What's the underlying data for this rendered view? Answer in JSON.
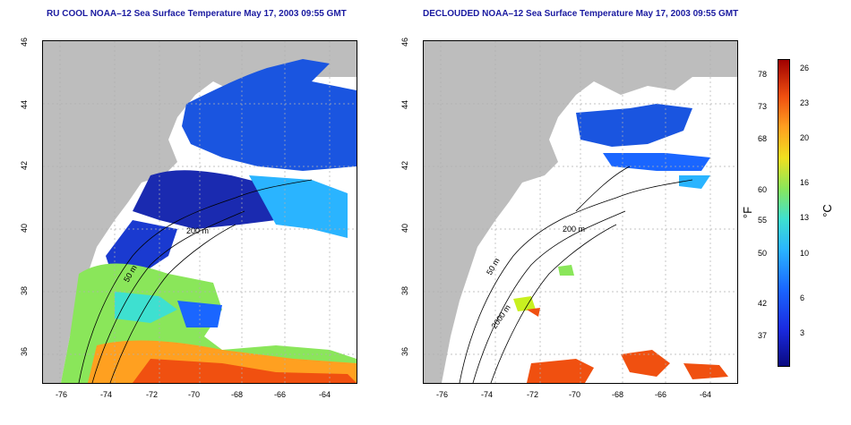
{
  "left_panel": {
    "title": "RU COOL NOAA–12 Sea Surface Temperature May 17, 2003 09:55 GMT"
  },
  "right_panel": {
    "title": "DECLOUDED NOAA–12 Sea Surface Temperature May 17, 2003 09:55 GMT"
  },
  "axes": {
    "x_ticks": [
      "-76",
      "-74",
      "-72",
      "-70",
      "-68",
      "-66",
      "-64"
    ],
    "y_ticks": [
      "46",
      "44",
      "42",
      "40",
      "38",
      "36"
    ]
  },
  "contours": {
    "c50": "50 m",
    "c200": "200 m",
    "c2000": "2000 m"
  },
  "colorbar": {
    "fahrenheit_unit": "°F",
    "celsius_unit": "°C",
    "fahrenheit_ticks": [
      "78",
      "73",
      "68",
      "60",
      "55",
      "50",
      "42",
      "37"
    ],
    "celsius_ticks": [
      "26",
      "23",
      "20",
      "16",
      "13",
      "10",
      "6",
      "3"
    ],
    "colors": [
      "#0a0a80",
      "#1a2ae0",
      "#1a66ff",
      "#2ab4ff",
      "#3ee0d0",
      "#8ae65a",
      "#f0e020",
      "#ffa020",
      "#f05010",
      "#a00000"
    ]
  },
  "colors": {
    "land": "#bdbdbd",
    "title": "#1a1aa0",
    "grid": "#b0b0b0"
  }
}
